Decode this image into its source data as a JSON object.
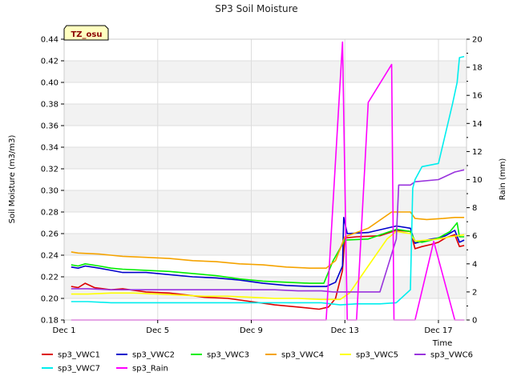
{
  "chart_data": {
    "type": "line",
    "title": "SP3 Soil Moisture",
    "xlabel": "Time",
    "ylabel": "Soil Moisture (m3/m3)",
    "y2label": "Rain (mm)",
    "annotation": "TZ_osu",
    "x_unit": "day of December",
    "xlim": [
      1,
      18.2
    ],
    "ylim": [
      0.18,
      0.44
    ],
    "y2lim": [
      0,
      20
    ],
    "x_ticks": [
      {
        "value": 1,
        "label": "Dec 1"
      },
      {
        "value": 5,
        "label": "Dec 5"
      },
      {
        "value": 9,
        "label": "Dec 9"
      },
      {
        "value": 13,
        "label": "Dec 13"
      },
      {
        "value": 17,
        "label": "Dec 17"
      }
    ],
    "y_ticks": [
      "0.18",
      "0.20",
      "0.22",
      "0.24",
      "0.26",
      "0.28",
      "0.30",
      "0.32",
      "0.34",
      "0.36",
      "0.38",
      "0.40",
      "0.42",
      "0.44"
    ],
    "y2_ticks": [
      "0",
      "2",
      "4",
      "6",
      "8",
      "10",
      "12",
      "14",
      "16",
      "18",
      "20"
    ],
    "grid": true,
    "legend_position": "bottom",
    "series": [
      {
        "name": "sp3_VWC1",
        "color": "#dd0000",
        "axis": "left",
        "points": [
          [
            1.3,
            0.211
          ],
          [
            1.6,
            0.21
          ],
          [
            1.9,
            0.214
          ],
          [
            2.3,
            0.21
          ],
          [
            3.0,
            0.208
          ],
          [
            3.5,
            0.209
          ],
          [
            4.5,
            0.206
          ],
          [
            5.5,
            0.205
          ],
          [
            6.3,
            0.203
          ],
          [
            7.0,
            0.201
          ],
          [
            8.0,
            0.2
          ],
          [
            9.0,
            0.197
          ],
          [
            10.0,
            0.194
          ],
          [
            11.0,
            0.192
          ],
          [
            11.9,
            0.19
          ],
          [
            12.3,
            0.192
          ],
          [
            12.6,
            0.2
          ],
          [
            12.9,
            0.226
          ],
          [
            13.0,
            0.256
          ],
          [
            13.5,
            0.257
          ],
          [
            14.5,
            0.258
          ],
          [
            15.2,
            0.263
          ],
          [
            15.8,
            0.262
          ],
          [
            16.0,
            0.246
          ],
          [
            16.3,
            0.248
          ],
          [
            16.7,
            0.25
          ],
          [
            17.0,
            0.252
          ],
          [
            17.3,
            0.256
          ],
          [
            17.7,
            0.259
          ],
          [
            17.9,
            0.248
          ],
          [
            18.1,
            0.249
          ]
        ]
      },
      {
        "name": "sp3_VWC2",
        "color": "#0000cc",
        "axis": "left",
        "points": [
          [
            1.3,
            0.229
          ],
          [
            1.6,
            0.228
          ],
          [
            1.9,
            0.23
          ],
          [
            2.5,
            0.228
          ],
          [
            3.0,
            0.226
          ],
          [
            3.5,
            0.224
          ],
          [
            4.5,
            0.224
          ],
          [
            5.5,
            0.222
          ],
          [
            6.5,
            0.22
          ],
          [
            7.5,
            0.219
          ],
          [
            8.5,
            0.217
          ],
          [
            9.5,
            0.214
          ],
          [
            10.5,
            0.212
          ],
          [
            11.5,
            0.211
          ],
          [
            12.2,
            0.211
          ],
          [
            12.6,
            0.215
          ],
          [
            12.9,
            0.23
          ],
          [
            12.95,
            0.275
          ],
          [
            13.1,
            0.26
          ],
          [
            14.0,
            0.261
          ],
          [
            15.2,
            0.267
          ],
          [
            15.8,
            0.265
          ],
          [
            16.0,
            0.251
          ],
          [
            16.3,
            0.253
          ],
          [
            16.7,
            0.255
          ],
          [
            17.0,
            0.256
          ],
          [
            17.3,
            0.258
          ],
          [
            17.7,
            0.263
          ],
          [
            17.9,
            0.252
          ],
          [
            18.1,
            0.254
          ]
        ]
      },
      {
        "name": "sp3_VWC3",
        "color": "#00ee00",
        "axis": "left",
        "points": [
          [
            1.3,
            0.231
          ],
          [
            1.6,
            0.23
          ],
          [
            1.9,
            0.232
          ],
          [
            2.5,
            0.23
          ],
          [
            3.0,
            0.228
          ],
          [
            3.5,
            0.227
          ],
          [
            4.5,
            0.226
          ],
          [
            5.5,
            0.225
          ],
          [
            6.5,
            0.223
          ],
          [
            7.5,
            0.221
          ],
          [
            8.5,
            0.218
          ],
          [
            9.5,
            0.216
          ],
          [
            10.5,
            0.215
          ],
          [
            11.5,
            0.214
          ],
          [
            12.1,
            0.214
          ],
          [
            12.5,
            0.235
          ],
          [
            13.0,
            0.254
          ],
          [
            14.0,
            0.255
          ],
          [
            15.2,
            0.264
          ],
          [
            15.8,
            0.262
          ],
          [
            16.0,
            0.253
          ],
          [
            16.3,
            0.252
          ],
          [
            16.7,
            0.254
          ],
          [
            17.0,
            0.256
          ],
          [
            17.5,
            0.262
          ],
          [
            17.8,
            0.27
          ],
          [
            17.9,
            0.257
          ],
          [
            18.1,
            0.257
          ]
        ]
      },
      {
        "name": "sp3_VWC4",
        "color": "#f5a300",
        "axis": "left",
        "points": [
          [
            1.3,
            0.243
          ],
          [
            1.6,
            0.242
          ],
          [
            2.5,
            0.241
          ],
          [
            3.0,
            0.24
          ],
          [
            3.5,
            0.239
          ],
          [
            4.5,
            0.238
          ],
          [
            5.5,
            0.237
          ],
          [
            6.5,
            0.235
          ],
          [
            7.5,
            0.234
          ],
          [
            8.5,
            0.232
          ],
          [
            9.5,
            0.231
          ],
          [
            10.5,
            0.229
          ],
          [
            11.5,
            0.228
          ],
          [
            12.2,
            0.228
          ],
          [
            12.6,
            0.235
          ],
          [
            13.0,
            0.257
          ],
          [
            14.0,
            0.265
          ],
          [
            15.0,
            0.28
          ],
          [
            15.8,
            0.28
          ],
          [
            16.0,
            0.274
          ],
          [
            16.5,
            0.273
          ],
          [
            17.2,
            0.274
          ],
          [
            17.7,
            0.275
          ],
          [
            18.1,
            0.275
          ]
        ]
      },
      {
        "name": "sp3_VWC5",
        "color": "#ffff00",
        "axis": "left",
        "points": [
          [
            1.3,
            0.204
          ],
          [
            2.0,
            0.204
          ],
          [
            3.0,
            0.205
          ],
          [
            4.0,
            0.205
          ],
          [
            5.0,
            0.204
          ],
          [
            6.0,
            0.203
          ],
          [
            7.0,
            0.202
          ],
          [
            8.0,
            0.202
          ],
          [
            9.0,
            0.201
          ],
          [
            10.0,
            0.2
          ],
          [
            11.0,
            0.2
          ],
          [
            12.0,
            0.199
          ],
          [
            12.8,
            0.199
          ],
          [
            13.2,
            0.205
          ],
          [
            14.0,
            0.23
          ],
          [
            14.8,
            0.255
          ],
          [
            15.2,
            0.262
          ],
          [
            15.8,
            0.26
          ],
          [
            16.0,
            0.253
          ],
          [
            16.5,
            0.254
          ],
          [
            17.0,
            0.255
          ],
          [
            17.5,
            0.257
          ],
          [
            18.1,
            0.259
          ]
        ]
      },
      {
        "name": "sp3_VWC6",
        "color": "#9933dd",
        "axis": "left",
        "points": [
          [
            1.3,
            0.209
          ],
          [
            2.0,
            0.209
          ],
          [
            3.0,
            0.208
          ],
          [
            4.0,
            0.208
          ],
          [
            5.0,
            0.208
          ],
          [
            6.0,
            0.208
          ],
          [
            7.0,
            0.208
          ],
          [
            8.0,
            0.208
          ],
          [
            9.0,
            0.208
          ],
          [
            10.0,
            0.208
          ],
          [
            11.0,
            0.207
          ],
          [
            12.0,
            0.207
          ],
          [
            12.5,
            0.206
          ],
          [
            13.5,
            0.206
          ],
          [
            14.5,
            0.206
          ],
          [
            15.2,
            0.255
          ],
          [
            15.3,
            0.305
          ],
          [
            15.8,
            0.305
          ],
          [
            16.0,
            0.308
          ],
          [
            17.0,
            0.31
          ],
          [
            17.7,
            0.317
          ],
          [
            18.1,
            0.319
          ]
        ]
      },
      {
        "name": "sp3_VWC7",
        "color": "#00eeee",
        "axis": "left",
        "points": [
          [
            1.3,
            0.197
          ],
          [
            2.0,
            0.197
          ],
          [
            3.0,
            0.196
          ],
          [
            4.0,
            0.196
          ],
          [
            5.0,
            0.196
          ],
          [
            6.0,
            0.196
          ],
          [
            7.0,
            0.196
          ],
          [
            8.0,
            0.196
          ],
          [
            9.0,
            0.196
          ],
          [
            10.0,
            0.196
          ],
          [
            11.0,
            0.196
          ],
          [
            12.0,
            0.196
          ],
          [
            12.8,
            0.194
          ],
          [
            13.5,
            0.195
          ],
          [
            14.5,
            0.195
          ],
          [
            15.2,
            0.196
          ],
          [
            15.8,
            0.208
          ],
          [
            15.9,
            0.302
          ],
          [
            16.0,
            0.31
          ],
          [
            16.3,
            0.322
          ],
          [
            17.0,
            0.325
          ],
          [
            17.6,
            0.38
          ],
          [
            17.8,
            0.4
          ],
          [
            17.9,
            0.423
          ],
          [
            18.1,
            0.424
          ]
        ]
      },
      {
        "name": "sp3_Rain",
        "color": "#ff00ff",
        "axis": "right",
        "points": [
          [
            1.3,
            0
          ],
          [
            3.0,
            0
          ],
          [
            5.0,
            0
          ],
          [
            7.0,
            0
          ],
          [
            9.0,
            0
          ],
          [
            11.0,
            0
          ],
          [
            12.2,
            0
          ],
          [
            12.9,
            19.8
          ],
          [
            13.1,
            0
          ],
          [
            13.5,
            0
          ],
          [
            14.0,
            15.5
          ],
          [
            15.0,
            18.2
          ],
          [
            15.1,
            0
          ],
          [
            16.0,
            0
          ],
          [
            16.8,
            5.6
          ],
          [
            17.7,
            0
          ],
          [
            18.1,
            0
          ]
        ]
      }
    ]
  }
}
